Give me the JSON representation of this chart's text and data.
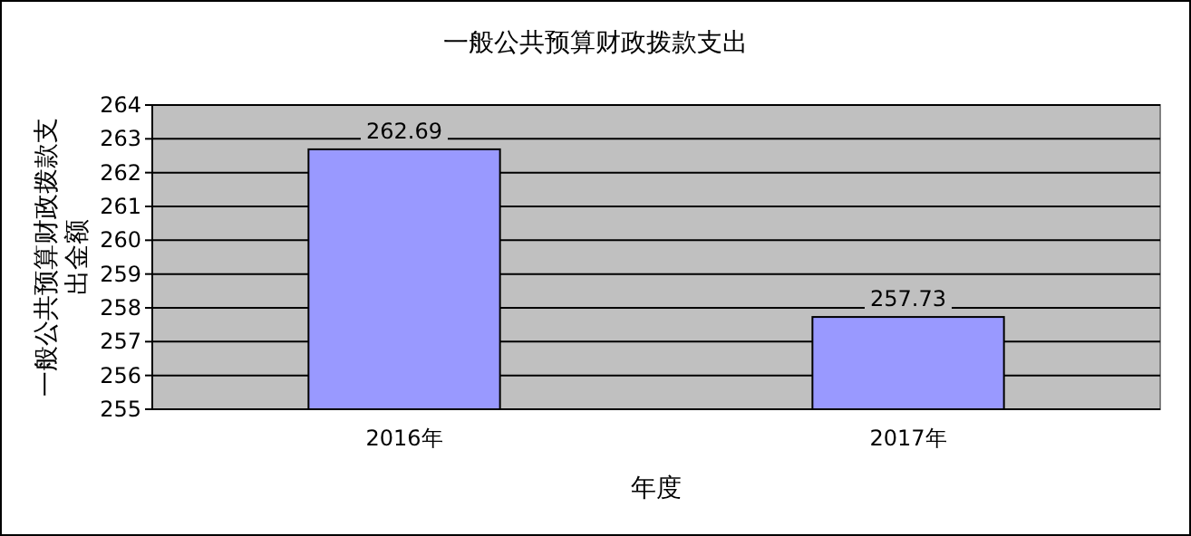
{
  "chart_data": {
    "type": "bar",
    "title": "一般公共预算财政拨款支出",
    "xlabel": "年度",
    "ylabel": "一般公共预算财政拨款支出金额",
    "categories": [
      "2016年",
      "2017年"
    ],
    "values": [
      262.69,
      257.73
    ],
    "color": "#9999ff",
    "ylim": [
      255,
      264
    ],
    "yticks": [
      255,
      256,
      257,
      258,
      259,
      260,
      261,
      262,
      263,
      264
    ],
    "grid": "y",
    "data_labels": true
  }
}
